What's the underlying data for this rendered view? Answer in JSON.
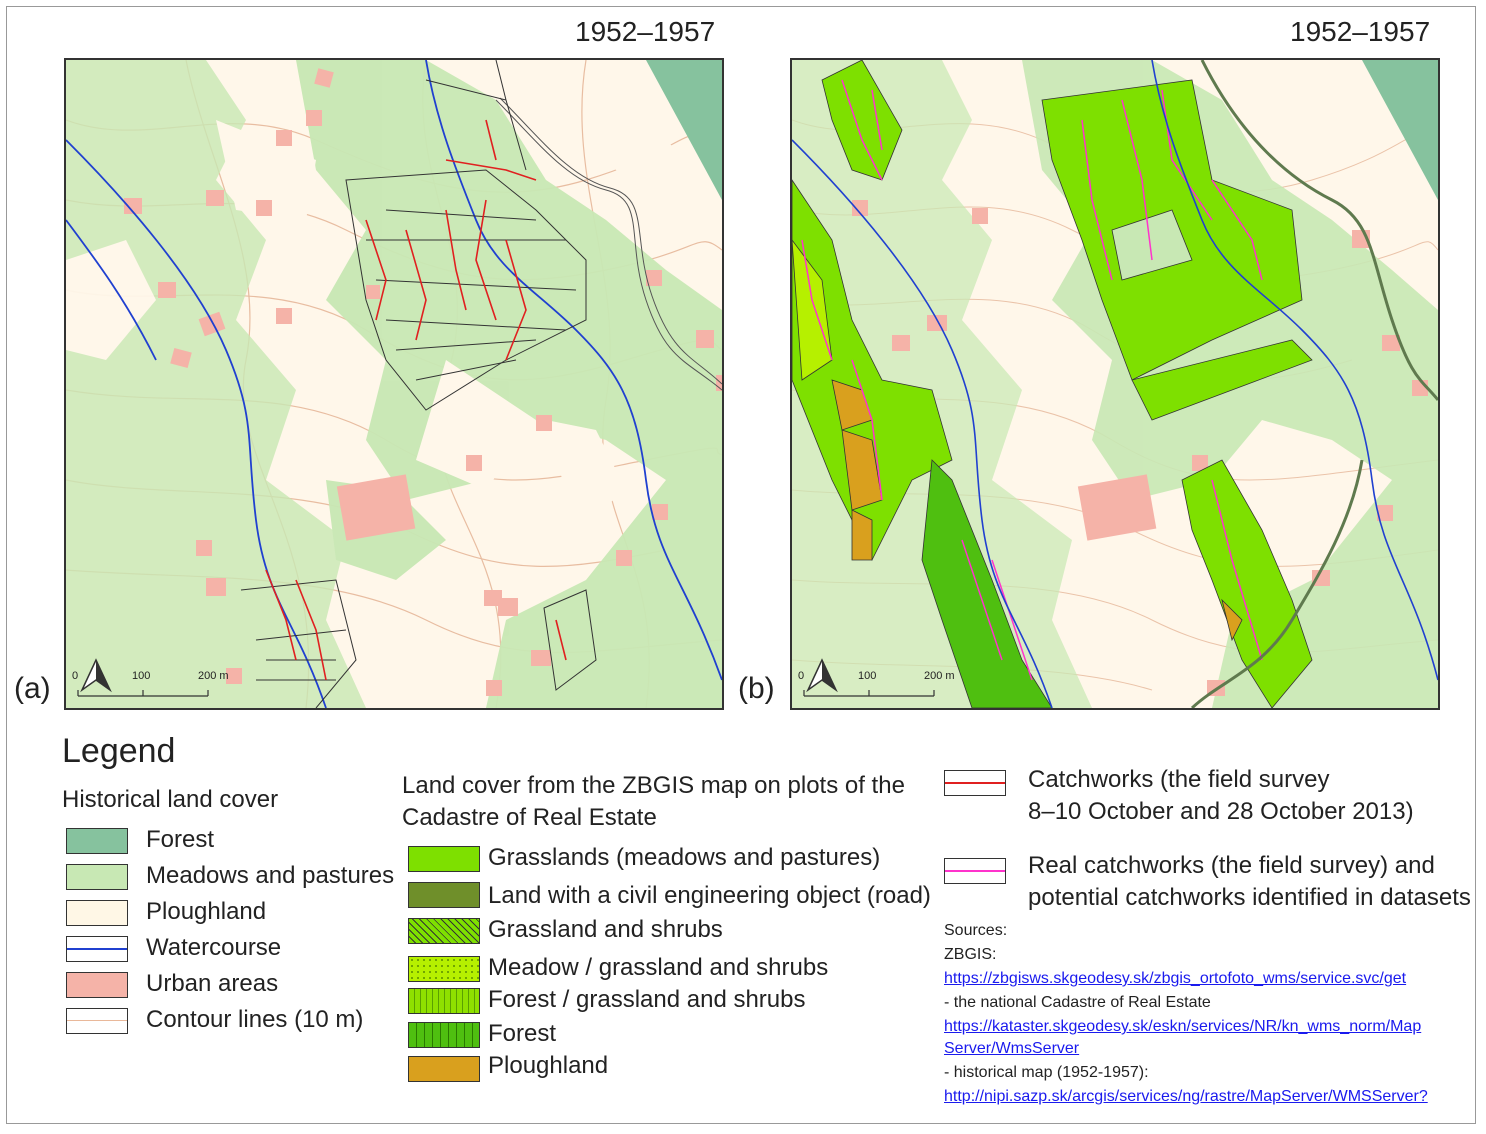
{
  "panels": [
    {
      "id": "a",
      "title": "1952–1957",
      "label": "(a)"
    },
    {
      "id": "b",
      "title": "1952–1957",
      "label": "(b)"
    }
  ],
  "scale_bar": {
    "ticks": [
      "0",
      "100",
      "200 m"
    ]
  },
  "legend": {
    "title": "Legend",
    "historical": {
      "heading": "Historical land cover",
      "items": [
        {
          "label": "Forest",
          "color": "#86c29e"
        },
        {
          "label": "Meadows and pastures",
          "color": "#c8e8b4"
        },
        {
          "label": "Ploughland",
          "color": "#fff7e6"
        },
        {
          "label": "Watercourse",
          "color": "#2040d0"
        },
        {
          "label": "Urban areas",
          "color": "#f5b3a8"
        },
        {
          "label": "Contour lines (10 m)",
          "color": "#e9b89a"
        }
      ]
    },
    "zbgis": {
      "heading_line1": "Land cover from the ZBGIS map on plots of the",
      "heading_line2": "Cadastre of Real Estate",
      "items": [
        {
          "label": "Grasslands (meadows and pastures)",
          "color": "#7ee000"
        },
        {
          "label": "Land with a civil engineering object (road)",
          "color": "#6f8f2a"
        },
        {
          "label": "Grassland and shrubs",
          "color": "#7ee000"
        },
        {
          "label": "Meadow / grassland and shrubs",
          "color": "#b6f000"
        },
        {
          "label": "Forest / grassland and shrubs",
          "color": "#8fe000"
        },
        {
          "label": "Forest",
          "color": "#4fbf10"
        },
        {
          "label": "Ploughland",
          "color": "#d9a01e"
        }
      ]
    },
    "catchworks": {
      "item1_line1": "Catchworks (the field survey",
      "item1_line2": "8–10 October and 28 October 2013)",
      "item1_color": "#e02020",
      "item2_line1": "Real catchworks (the field survey) and",
      "item2_line2": "potential catchworks identified in datasets",
      "item2_color": "#ff33cc"
    },
    "sources": {
      "heading": "Sources:",
      "zbgis_label": "ZBGIS:",
      "zbgis_url": "https://zbgisws.skgeodesy.sk/zbgis_ortofoto_wms/service.svc/get",
      "cadastre_label": "- the national Cadastre of Real Estate",
      "cadastre_url_line1": "https://kataster.skgeodesy.sk/eskn/services/NR/kn_wms_norm/Map",
      "cadastre_url_line2": "Server/WmsServer",
      "historical_label": "- historical map (1952-1957):",
      "historical_url": "http://nipi.sazp.sk/arcgis/services/ng/rastre/MapServer/WMSServer?"
    }
  }
}
